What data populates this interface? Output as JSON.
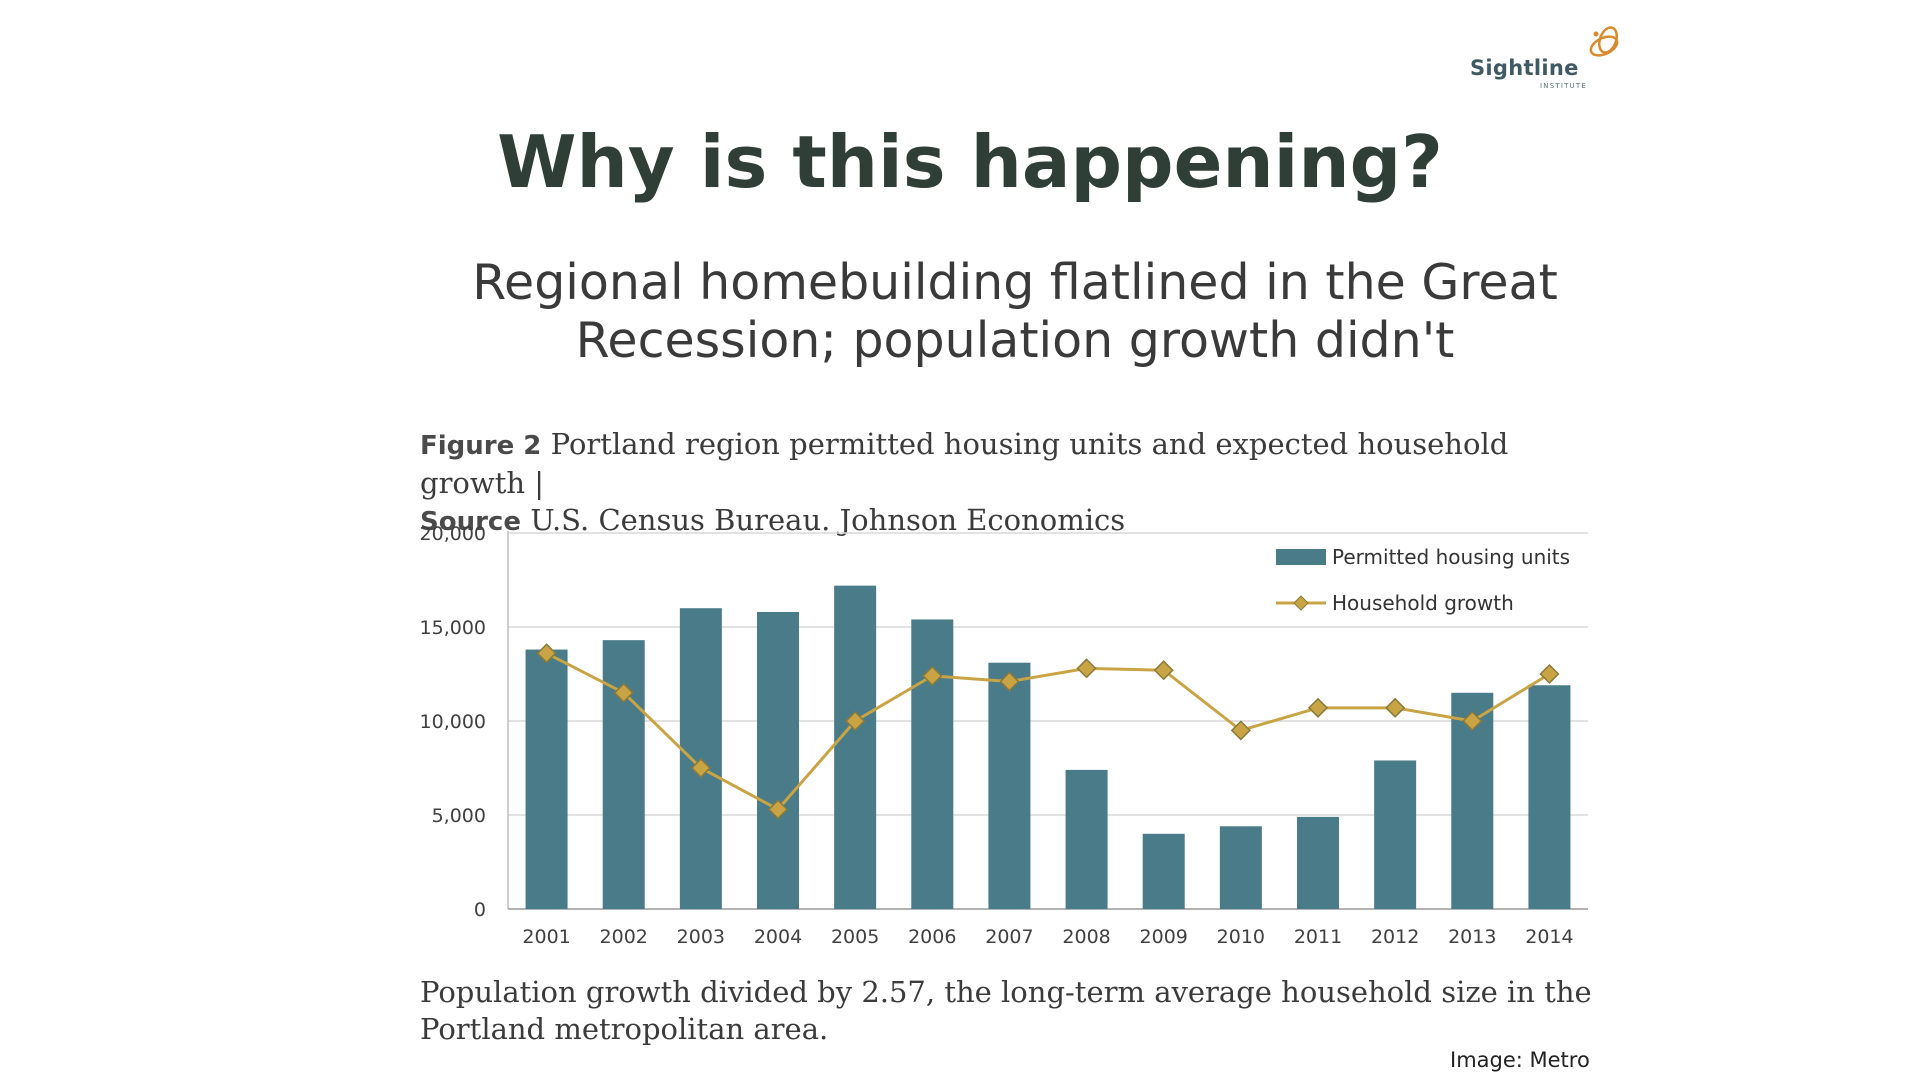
{
  "logo": {
    "name": "Sightline",
    "sub": "INSTITUTE"
  },
  "slide": {
    "title": "Why is this happening?",
    "subtitle_line1": "Regional homebuilding flatlined in the Great",
    "subtitle_line2": "Recession; population growth didn't"
  },
  "figure": {
    "label": "Figure 2",
    "caption": "Portland region permitted housing units and expected household growth |",
    "source_label": "Source",
    "source": "U.S. Census Bureau. Johnson Economics",
    "note": "Population growth divided by 2.57, the long-term average household size in the Portland metropolitan area.",
    "credit": "Image: Metro"
  },
  "colors": {
    "bar": "#4a7b88",
    "line": "#c9a445",
    "marker_edge": "#8a7a3a",
    "grid": "#d9d9d9",
    "axis_text": "#404040",
    "title": "#2f3f37"
  },
  "chart_data": {
    "type": "bar",
    "categories": [
      "2001",
      "2002",
      "2003",
      "2004",
      "2005",
      "2006",
      "2007",
      "2008",
      "2009",
      "2010",
      "2011",
      "2012",
      "2013",
      "2014"
    ],
    "series": [
      {
        "name": "Permitted housing units",
        "type": "bar",
        "values": [
          13800,
          14300,
          16000,
          15800,
          17200,
          15400,
          13100,
          7400,
          4000,
          4400,
          4900,
          7900,
          11500,
          11900
        ]
      },
      {
        "name": "Household growth",
        "type": "line",
        "values": [
          13600,
          11500,
          7500,
          5300,
          10000,
          12400,
          12100,
          12800,
          12700,
          9500,
          10700,
          10700,
          10000,
          12500
        ]
      }
    ],
    "ylim": [
      0,
      20000
    ],
    "yticks": [
      0,
      5000,
      10000,
      15000,
      20000
    ],
    "ytick_labels": [
      "0",
      "5,000",
      "10,000",
      "15,000",
      "20,000"
    ],
    "grid": true,
    "legend_position": "top-right"
  }
}
